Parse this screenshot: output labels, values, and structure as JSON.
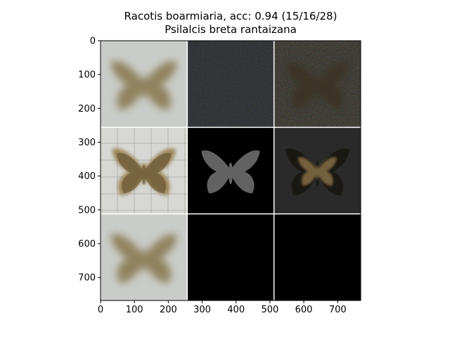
{
  "title": {
    "line1": "Racotis boarmiaria, acc: 0.94 (15/16/28)",
    "line2": "Psilalcis breta rantaizana"
  },
  "chart_data": {
    "type": "image_grid",
    "rows": 3,
    "cols": 3,
    "cell_size": 256,
    "xlim": [
      0,
      768
    ],
    "ylim": [
      768,
      0
    ],
    "x_ticks": [
      0,
      100,
      200,
      300,
      400,
      500,
      600,
      700
    ],
    "y_ticks": [
      0,
      100,
      200,
      300,
      400,
      500,
      600,
      700
    ],
    "cells": [
      {
        "row": 0,
        "col": 0,
        "content": "moth-blurry-light",
        "bg": "#c9ccc8"
      },
      {
        "row": 0,
        "col": 1,
        "content": "noise-dark",
        "bg": "#121416"
      },
      {
        "row": 0,
        "col": 2,
        "content": "moth-dark",
        "bg": "#1f1f1c"
      },
      {
        "row": 1,
        "col": 0,
        "content": "moth-specimen",
        "bg": "#d7d8d4"
      },
      {
        "row": 1,
        "col": 1,
        "content": "mask-sparse",
        "bg": "#000000"
      },
      {
        "row": 1,
        "col": 2,
        "content": "moth-masked",
        "bg": "#2a2a2a"
      },
      {
        "row": 2,
        "col": 0,
        "content": "moth-blurry-light",
        "bg": "#c9ccc8"
      },
      {
        "row": 2,
        "col": 1,
        "content": "black",
        "bg": "#000000"
      },
      {
        "row": 2,
        "col": 2,
        "content": "black",
        "bg": "#000000"
      }
    ]
  }
}
